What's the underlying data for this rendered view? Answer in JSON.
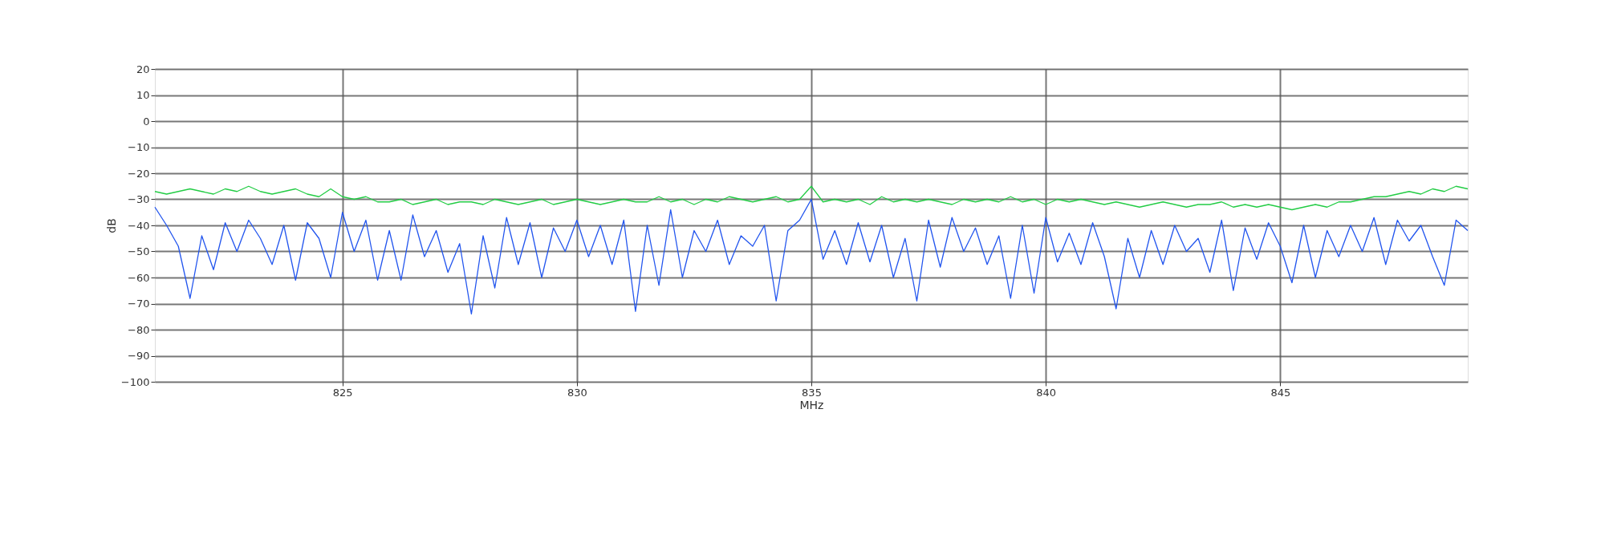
{
  "chart_data": {
    "type": "line",
    "xlabel": "MHz",
    "ylabel": "dB",
    "x": [
      821.0,
      821.25,
      821.5,
      821.75,
      822.0,
      822.25,
      822.5,
      822.75,
      823.0,
      823.25,
      823.5,
      823.75,
      824.0,
      824.25,
      824.5,
      824.75,
      825.0,
      825.25,
      825.5,
      825.75,
      826.0,
      826.25,
      826.5,
      826.75,
      827.0,
      827.25,
      827.5,
      827.75,
      828.0,
      828.25,
      828.5,
      828.75,
      829.0,
      829.25,
      829.5,
      829.75,
      830.0,
      830.25,
      830.5,
      830.75,
      831.0,
      831.25,
      831.5,
      831.75,
      832.0,
      832.25,
      832.5,
      832.75,
      833.0,
      833.25,
      833.5,
      833.75,
      834.0,
      834.25,
      834.5,
      834.75,
      835.0,
      835.25,
      835.5,
      835.75,
      836.0,
      836.25,
      836.5,
      836.75,
      837.0,
      837.25,
      837.5,
      837.75,
      838.0,
      838.25,
      838.5,
      838.75,
      839.0,
      839.25,
      839.5,
      839.75,
      840.0,
      840.25,
      840.5,
      840.75,
      841.0,
      841.25,
      841.5,
      841.75,
      842.0,
      842.25,
      842.5,
      842.75,
      843.0,
      843.25,
      843.5,
      843.75,
      844.0,
      844.25,
      844.5,
      844.75,
      845.0,
      845.25,
      845.5,
      845.75,
      846.0,
      846.25,
      846.5,
      846.75,
      847.0,
      847.25,
      847.5,
      847.75,
      848.0,
      848.25,
      848.5,
      848.75,
      849.0
    ],
    "series": [
      {
        "color": "#22cc44",
        "values": [
          -27,
          -28,
          -27,
          -26,
          -27,
          -28,
          -26,
          -27,
          -25,
          -27,
          -28,
          -27,
          -26,
          -28,
          -29,
          -26,
          -29,
          -30,
          -29,
          -31,
          -31,
          -30,
          -32,
          -31,
          -30,
          -32,
          -31,
          -31,
          -32,
          -30,
          -31,
          -32,
          -31,
          -30,
          -32,
          -31,
          -30,
          -31,
          -32,
          -31,
          -30,
          -31,
          -31,
          -29,
          -31,
          -30,
          -32,
          -30,
          -31,
          -29,
          -30,
          -31,
          -30,
          -29,
          -31,
          -30,
          -25,
          -31,
          -30,
          -31,
          -30,
          -32,
          -29,
          -31,
          -30,
          -31,
          -30,
          -31,
          -32,
          -30,
          -31,
          -30,
          -31,
          -29,
          -31,
          -30,
          -32,
          -30,
          -31,
          -30,
          -31,
          -32,
          -31,
          -32,
          -33,
          -32,
          -31,
          -32,
          -33,
          -32,
          -32,
          -31,
          -33,
          -32,
          -33,
          -32,
          -33,
          -34,
          -33,
          -32,
          -33,
          -31,
          -31,
          -30,
          -29,
          -29,
          -28,
          -27,
          -28,
          -26,
          -27,
          -25,
          -26
        ]
      },
      {
        "color": "#2255ee",
        "values": [
          -33,
          -40,
          -48,
          -68,
          -44,
          -57,
          -39,
          -50,
          -38,
          -45,
          -55,
          -40,
          -61,
          -39,
          -45,
          -60,
          -35,
          -50,
          -38,
          -61,
          -42,
          -61,
          -36,
          -52,
          -42,
          -58,
          -47,
          -74,
          -44,
          -64,
          -37,
          -55,
          -39,
          -60,
          -41,
          -50,
          -38,
          -52,
          -40,
          -55,
          -38,
          -73,
          -40,
          -63,
          -34,
          -60,
          -42,
          -50,
          -38,
          -55,
          -44,
          -48,
          -40,
          -69,
          -42,
          -38,
          -30,
          -53,
          -42,
          -55,
          -39,
          -54,
          -40,
          -60,
          -45,
          -69,
          -38,
          -56,
          -37,
          -50,
          -41,
          -55,
          -44,
          -68,
          -40,
          -66,
          -37,
          -54,
          -43,
          -55,
          -39,
          -52,
          -72,
          -45,
          -60,
          -42,
          -55,
          -40,
          -50,
          -45,
          -58,
          -38,
          -65,
          -41,
          -53,
          -39,
          -48,
          -62,
          -40,
          -60,
          -42,
          -52,
          -40,
          -50,
          -37,
          -55,
          -38,
          -46,
          -40,
          -52,
          -63,
          -38,
          -42
        ]
      }
    ],
    "xlim": [
      821,
      849
    ],
    "xticks": [
      825,
      830,
      835,
      840,
      845
    ],
    "ylim": [
      -100,
      20
    ],
    "yticks": [
      -100,
      -90,
      -80,
      -70,
      -60,
      -50,
      -40,
      -30,
      -20,
      -10,
      0,
      10,
      20
    ],
    "grid": true,
    "marker": "none",
    "line_style": "solid"
  }
}
